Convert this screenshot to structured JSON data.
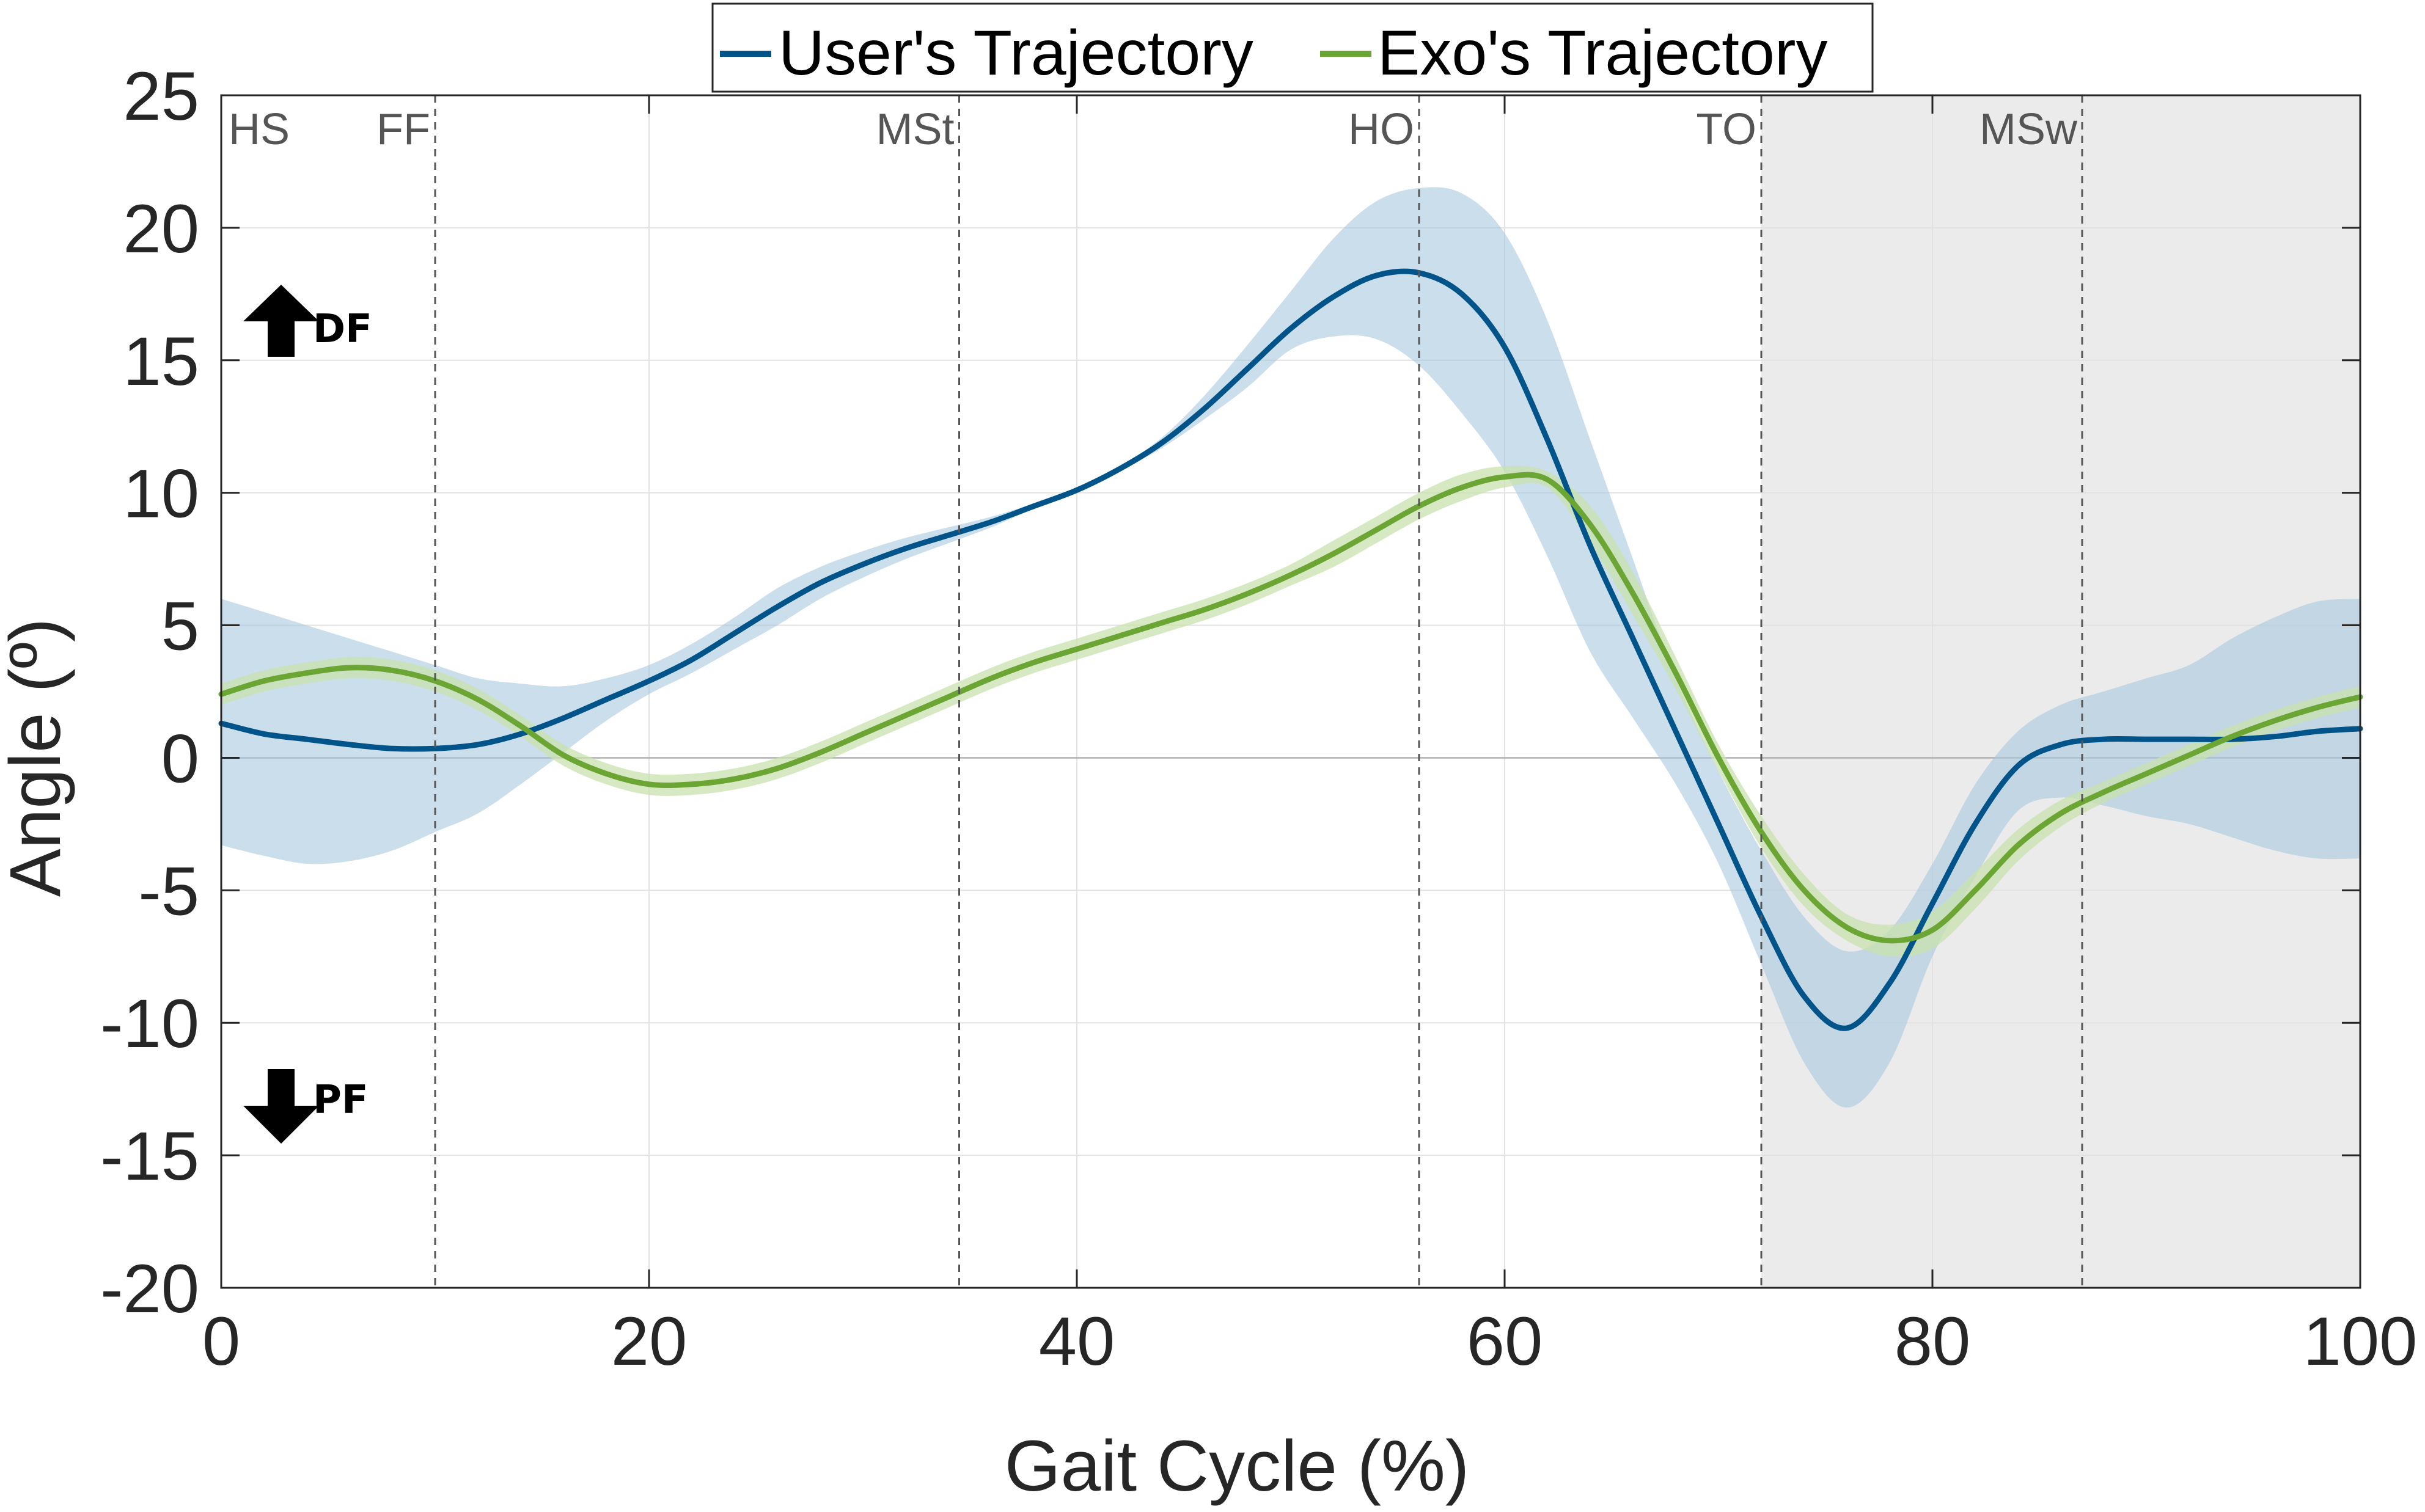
{
  "chart_data": {
    "type": "line",
    "xlabel": "Gait Cycle (%)",
    "ylabel": "Angle (º)",
    "xlim": [
      0,
      100
    ],
    "ylim": [
      -20,
      25
    ],
    "xticks": [
      0,
      20,
      40,
      60,
      80,
      100
    ],
    "yticks": [
      -20,
      -15,
      -10,
      -5,
      0,
      5,
      10,
      15,
      20,
      25
    ],
    "grid": true,
    "legend_position": "top-center",
    "swing_region": [
      72,
      100
    ],
    "swing_color": "#ebebeb",
    "phases": [
      {
        "label": "HS",
        "x": 0
      },
      {
        "label": "FF",
        "x": 10
      },
      {
        "label": "MSt",
        "x": 34.5
      },
      {
        "label": "HO",
        "x": 56
      },
      {
        "label": "TO",
        "x": 72
      },
      {
        "label": "MSw",
        "x": 87
      }
    ],
    "annotations": {
      "up": "DF",
      "down": "PF"
    },
    "series": [
      {
        "name": "User's Trajectory",
        "color": "#00548a",
        "band_color": "#a9c8dd",
        "x": [
          0,
          2,
          4,
          6,
          8,
          10,
          12,
          14,
          16,
          18,
          20,
          22,
          24,
          26,
          28,
          30,
          32,
          34,
          36,
          38,
          40,
          42,
          44,
          46,
          48,
          50,
          52,
          54,
          56,
          58,
          60,
          62,
          64,
          66,
          68,
          70,
          72,
          74,
          76,
          78,
          80,
          82,
          84,
          86,
          88,
          90,
          92,
          94,
          96,
          98,
          100
        ],
        "mean": [
          1.3,
          0.9,
          0.7,
          0.5,
          0.35,
          0.35,
          0.5,
          0.9,
          1.5,
          2.2,
          2.9,
          3.7,
          4.7,
          5.7,
          6.6,
          7.3,
          7.9,
          8.4,
          8.9,
          9.5,
          10.1,
          10.9,
          11.9,
          13.2,
          14.7,
          16.2,
          17.4,
          18.2,
          18.3,
          17.5,
          15.5,
          12.0,
          8.0,
          4.5,
          1.0,
          -2.5,
          -6.0,
          -9.0,
          -10.2,
          -8.5,
          -5.5,
          -2.5,
          -0.3,
          0.5,
          0.7,
          0.7,
          0.7,
          0.7,
          0.8,
          1.0,
          1.1
        ],
        "upper": [
          6.0,
          5.5,
          5.0,
          4.5,
          4.0,
          3.5,
          3.0,
          2.8,
          2.7,
          3.0,
          3.5,
          4.3,
          5.3,
          6.4,
          7.2,
          7.8,
          8.3,
          8.7,
          9.1,
          9.6,
          10.2,
          11.0,
          12.1,
          13.7,
          15.6,
          17.6,
          19.6,
          21.0,
          21.5,
          21.3,
          19.8,
          16.5,
          12.0,
          7.5,
          3.0,
          -0.5,
          -3.5,
          -6.0,
          -7.3,
          -6.5,
          -4.0,
          -1.0,
          1.0,
          2.0,
          2.5,
          3.0,
          3.5,
          4.5,
          5.3,
          5.9,
          6.0
        ],
        "lower": [
          -3.3,
          -3.7,
          -4.0,
          -3.9,
          -3.5,
          -2.8,
          -2.1,
          -1.0,
          0.2,
          1.4,
          2.4,
          3.2,
          4.1,
          5.0,
          6.0,
          6.8,
          7.5,
          8.1,
          8.7,
          9.4,
          10.0,
          10.8,
          11.7,
          12.8,
          14.0,
          15.4,
          15.9,
          15.8,
          14.8,
          13.0,
          10.8,
          7.6,
          4.0,
          1.5,
          -1.0,
          -4.0,
          -7.8,
          -11.5,
          -13.2,
          -11.5,
          -7.5,
          -4.5,
          -2.0,
          -1.5,
          -1.8,
          -2.2,
          -2.5,
          -3.0,
          -3.5,
          -3.8,
          -3.8
        ]
      },
      {
        "name": "Exo's Trajectory",
        "color": "#6ba534",
        "band_color": "#c9e1ad",
        "x": [
          0,
          2,
          4,
          6,
          8,
          10,
          12,
          14,
          16,
          18,
          20,
          22,
          24,
          26,
          28,
          30,
          32,
          34,
          36,
          38,
          40,
          42,
          44,
          46,
          48,
          50,
          52,
          54,
          56,
          58,
          60,
          62,
          64,
          66,
          68,
          70,
          72,
          74,
          76,
          78,
          80,
          82,
          84,
          86,
          88,
          90,
          92,
          94,
          96,
          98,
          100
        ],
        "mean": [
          2.4,
          2.9,
          3.2,
          3.4,
          3.3,
          2.9,
          2.2,
          1.2,
          0.1,
          -0.6,
          -1.0,
          -1.0,
          -0.8,
          -0.4,
          0.2,
          0.9,
          1.6,
          2.3,
          3.0,
          3.6,
          4.1,
          4.6,
          5.1,
          5.6,
          6.2,
          6.9,
          7.7,
          8.6,
          9.5,
          10.2,
          10.6,
          10.5,
          8.8,
          6.2,
          3.2,
          0.0,
          -2.8,
          -5.0,
          -6.4,
          -6.9,
          -6.5,
          -5.0,
          -3.3,
          -2.1,
          -1.3,
          -0.6,
          0.1,
          0.8,
          1.4,
          1.9,
          2.3
        ],
        "upper": [
          2.8,
          3.3,
          3.6,
          3.8,
          3.7,
          3.3,
          2.6,
          1.6,
          0.5,
          -0.2,
          -0.6,
          -0.6,
          -0.4,
          0.0,
          0.6,
          1.3,
          2.0,
          2.7,
          3.4,
          4.0,
          4.5,
          5.0,
          5.5,
          6.0,
          6.6,
          7.3,
          8.2,
          9.1,
          10.0,
          10.7,
          11.0,
          10.8,
          9.5,
          7.0,
          3.8,
          0.5,
          -2.2,
          -4.4,
          -5.9,
          -6.3,
          -5.8,
          -4.3,
          -2.7,
          -1.6,
          -0.9,
          -0.2,
          0.5,
          1.2,
          1.8,
          2.3,
          2.7
        ],
        "lower": [
          2.0,
          2.5,
          2.8,
          3.0,
          2.9,
          2.5,
          1.8,
          0.8,
          -0.3,
          -1.0,
          -1.4,
          -1.4,
          -1.2,
          -0.8,
          -0.2,
          0.5,
          1.2,
          1.9,
          2.6,
          3.2,
          3.7,
          4.2,
          4.7,
          5.2,
          5.8,
          6.5,
          7.2,
          8.1,
          9.0,
          9.7,
          10.2,
          10.2,
          8.1,
          5.4,
          2.6,
          -0.5,
          -3.4,
          -5.6,
          -6.9,
          -7.5,
          -7.2,
          -5.7,
          -3.9,
          -2.6,
          -1.7,
          -1.0,
          -0.3,
          0.4,
          1.0,
          1.5,
          1.9
        ]
      }
    ]
  }
}
